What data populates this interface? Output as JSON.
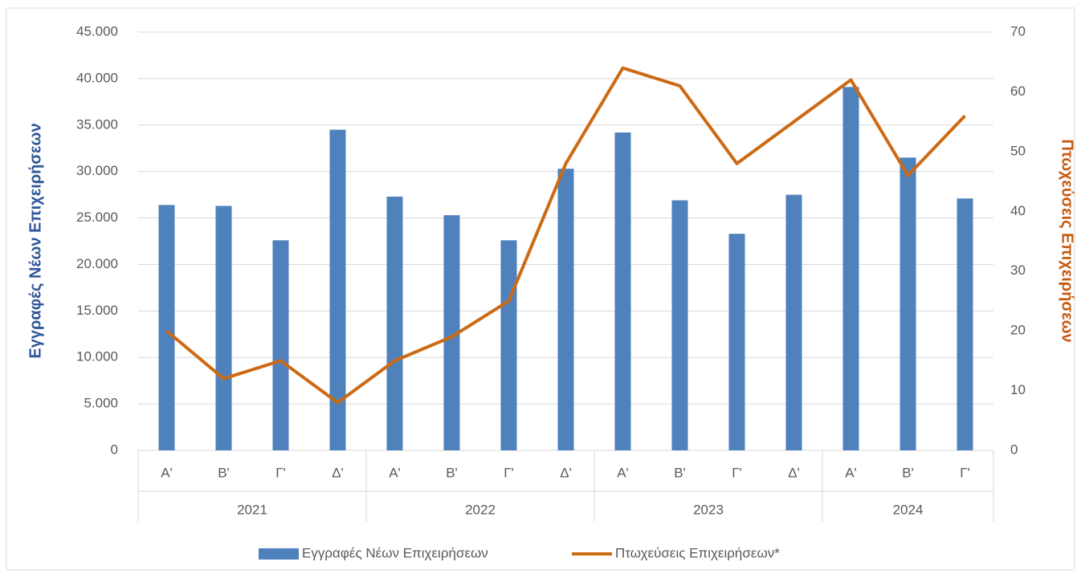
{
  "chart_data": {
    "type": "bar",
    "ylabel": "Εγγραφές Νέων Επιχειρήσεων",
    "y2label": "Πτωχεύσεις Επιχειρήσεων",
    "groups": [
      {
        "name": "2021",
        "categories": [
          "Α'",
          "Β'",
          "Γ'",
          "Δ'"
        ]
      },
      {
        "name": "2022",
        "categories": [
          "Α'",
          "Β'",
          "Γ'",
          "Δ'"
        ]
      },
      {
        "name": "2023",
        "categories": [
          "Α'",
          "Β'",
          "Γ'",
          "Δ'"
        ]
      },
      {
        "name": "2024",
        "categories": [
          "Α'",
          "Β'",
          "Γ'"
        ]
      }
    ],
    "series": [
      {
        "name": "Εγγραφές Νέων Επιχειρήσεων",
        "type": "bar",
        "color": "#4f81bd",
        "values": [
          26400,
          26300,
          22600,
          34500,
          27300,
          25300,
          22600,
          30300,
          34200,
          26900,
          23300,
          27500,
          39100,
          31500,
          27100
        ]
      },
      {
        "name": "Πτωχεύσεις Επιχειρήσεων*",
        "type": "line",
        "color": "#cc6a14",
        "axis": "y2",
        "values": [
          20,
          12,
          15,
          8,
          15,
          19,
          25,
          48,
          64,
          61,
          48,
          55,
          62,
          46,
          56
        ]
      }
    ],
    "ylim": [
      0,
      45000
    ],
    "yticks": [
      0,
      {
        "value": 5000,
        "label": "5.000"
      },
      {
        "value": 10000,
        "label": "10.000"
      },
      {
        "value": 15000,
        "label": "15.000"
      },
      {
        "value": 20000,
        "label": "20.000"
      },
      {
        "value": 25000,
        "label": "25.000"
      },
      {
        "value": 30000,
        "label": "30.000"
      },
      {
        "value": 35000,
        "label": "35.000"
      },
      {
        "value": 40000,
        "label": "40.000"
      },
      {
        "value": 45000,
        "label": "45.000"
      }
    ],
    "y2lim": [
      0,
      70
    ],
    "y2ticks": [
      0,
      10,
      20,
      30,
      40,
      50,
      60,
      70
    ],
    "grid": true,
    "legend": "bottom"
  }
}
